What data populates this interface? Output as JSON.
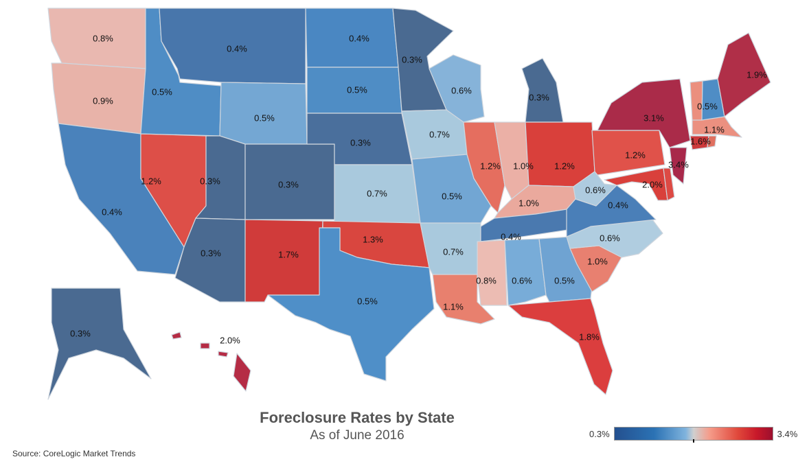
{
  "title": "Foreclosure Rates by State",
  "subtitle": "As of June 2016",
  "source": "Source: CoreLogic Market Trends",
  "legend": {
    "min_label": "0.3%",
    "max_label": "3.4%",
    "min_color": "#24508f",
    "max_color": "#9c0f2e"
  },
  "states": [
    {
      "id": "WA",
      "value": "0.8%",
      "color": "#e9b8b0"
    },
    {
      "id": "OR",
      "value": "0.9%",
      "color": "#e8b3a9"
    },
    {
      "id": "CA",
      "value": "0.4%",
      "color": "#4a82bb"
    },
    {
      "id": "NV",
      "value": "1.2%",
      "color": "#dd4f48"
    },
    {
      "id": "ID",
      "value": "0.5%",
      "color": "#4f8dc5"
    },
    {
      "id": "MT",
      "value": "0.4%",
      "color": "#4876ab"
    },
    {
      "id": "WY",
      "value": "0.5%",
      "color": "#74a7d3"
    },
    {
      "id": "UT",
      "value": "0.3%",
      "color": "#4a6a91"
    },
    {
      "id": "CO",
      "value": "0.3%",
      "color": "#4a6a91"
    },
    {
      "id": "AZ",
      "value": "0.3%",
      "color": "#4a6a91"
    },
    {
      "id": "NM",
      "value": "1.7%",
      "color": "#d03b3a"
    },
    {
      "id": "ND",
      "value": "0.4%",
      "color": "#4a87c2"
    },
    {
      "id": "SD",
      "value": "0.5%",
      "color": "#4f8dc5"
    },
    {
      "id": "NE",
      "value": "0.3%",
      "color": "#4a6f9c"
    },
    {
      "id": "KS",
      "value": "0.7%",
      "color": "#a9c9dd"
    },
    {
      "id": "OK",
      "value": "1.3%",
      "color": "#d9463f"
    },
    {
      "id": "TX",
      "value": "0.5%",
      "color": "#4f8fc8"
    },
    {
      "id": "MN",
      "value": "0.3%",
      "color": "#4a6a91"
    },
    {
      "id": "IA",
      "value": "0.7%",
      "color": "#a9c9dd"
    },
    {
      "id": "MO",
      "value": "0.5%",
      "color": "#72a6d3"
    },
    {
      "id": "AR",
      "value": "0.7%",
      "color": "#a9c9dd"
    },
    {
      "id": "LA",
      "value": "1.1%",
      "color": "#e8806e"
    },
    {
      "id": "WI",
      "value": "0.6%",
      "color": "#86b3d9"
    },
    {
      "id": "IL",
      "value": "1.2%",
      "color": "#e56e5f"
    },
    {
      "id": "MI",
      "value": "0.3%",
      "color": "#4a6a91"
    },
    {
      "id": "IN",
      "value": "1.0%",
      "color": "#ebb0a6"
    },
    {
      "id": "OH",
      "value": "1.2%",
      "color": "#d9403b"
    },
    {
      "id": "KY",
      "value": "1.0%",
      "color": "#eaa99d"
    },
    {
      "id": "TN",
      "value": "0.4%",
      "color": "#4a79af"
    },
    {
      "id": "MS",
      "value": "0.8%",
      "color": "#ecbcb3"
    },
    {
      "id": "AL",
      "value": "0.6%",
      "color": "#78acd8"
    },
    {
      "id": "GA",
      "value": "0.5%",
      "color": "#6fa3d2"
    },
    {
      "id": "FL",
      "value": "1.8%",
      "color": "#db3e3e"
    },
    {
      "id": "SC",
      "value": "1.0%",
      "color": "#e88070"
    },
    {
      "id": "NC",
      "value": "0.6%",
      "color": "#b0cde0"
    },
    {
      "id": "VA",
      "value": "0.4%",
      "color": "#4a7fb8"
    },
    {
      "id": "WV",
      "value": "0.6%",
      "color": "#aecbdf"
    },
    {
      "id": "MD",
      "value": "2.0%",
      "color": "#d9403b"
    },
    {
      "id": "DE",
      "value": "",
      "color": "#dd4a44"
    },
    {
      "id": "PA",
      "value": "1.2%",
      "color": "#e0524a"
    },
    {
      "id": "NJ",
      "value": "3.4%",
      "color": "#a8284a"
    },
    {
      "id": "NY",
      "value": "3.1%",
      "color": "#aa2b49"
    },
    {
      "id": "CT",
      "value": "1.6%",
      "color": "#cc3a3c"
    },
    {
      "id": "RI",
      "value": "",
      "color": "#e07060"
    },
    {
      "id": "MA",
      "value": "1.1%",
      "color": "#eb9080"
    },
    {
      "id": "VT",
      "value": "",
      "color": "#eb8f7e"
    },
    {
      "id": "NH",
      "value": "0.5%",
      "color": "#4f8dc5"
    },
    {
      "id": "ME",
      "value": "1.9%",
      "color": "#b02f48"
    },
    {
      "id": "AK",
      "value": "0.3%",
      "color": "#4a6a91"
    },
    {
      "id": "HI",
      "value": "2.0%",
      "color": "#b52c45"
    }
  ]
}
